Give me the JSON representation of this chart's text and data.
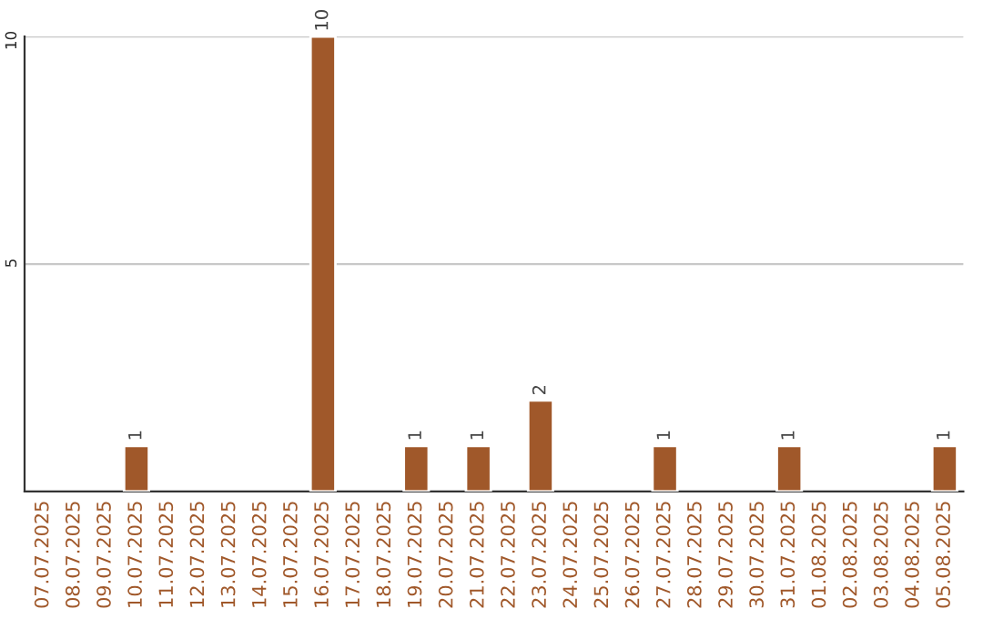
{
  "chart_data": {
    "type": "bar",
    "categories": [
      "07.07.2025",
      "08.07.2025",
      "09.07.2025",
      "10.07.2025",
      "11.07.2025",
      "12.07.2025",
      "13.07.2025",
      "14.07.2025",
      "15.07.2025",
      "16.07.2025",
      "17.07.2025",
      "18.07.2025",
      "19.07.2025",
      "20.07.2025",
      "21.07.2025",
      "22.07.2025",
      "23.07.2025",
      "24.07.2025",
      "25.07.2025",
      "26.07.2025",
      "27.07.2025",
      "28.07.2025",
      "29.07.2025",
      "30.07.2025",
      "31.07.2025",
      "01.08.2025",
      "02.08.2025",
      "03.08.2025",
      "04.08.2025",
      "05.08.2025"
    ],
    "values": [
      null,
      null,
      null,
      1,
      null,
      null,
      null,
      null,
      null,
      10,
      null,
      null,
      1,
      null,
      1,
      null,
      2,
      null,
      null,
      null,
      1,
      null,
      null,
      null,
      1,
      null,
      null,
      null,
      null,
      1
    ],
    "value_labels": [
      null,
      null,
      null,
      "1",
      null,
      null,
      null,
      null,
      null,
      "10",
      null,
      null,
      "1",
      null,
      "1",
      null,
      "2",
      null,
      null,
      null,
      "1",
      null,
      null,
      null,
      "1",
      null,
      null,
      null,
      null,
      "1"
    ],
    "color": "#a0582a",
    "ylim": [
      0,
      10
    ],
    "yticks": [
      5,
      10
    ],
    "grid": "y"
  }
}
